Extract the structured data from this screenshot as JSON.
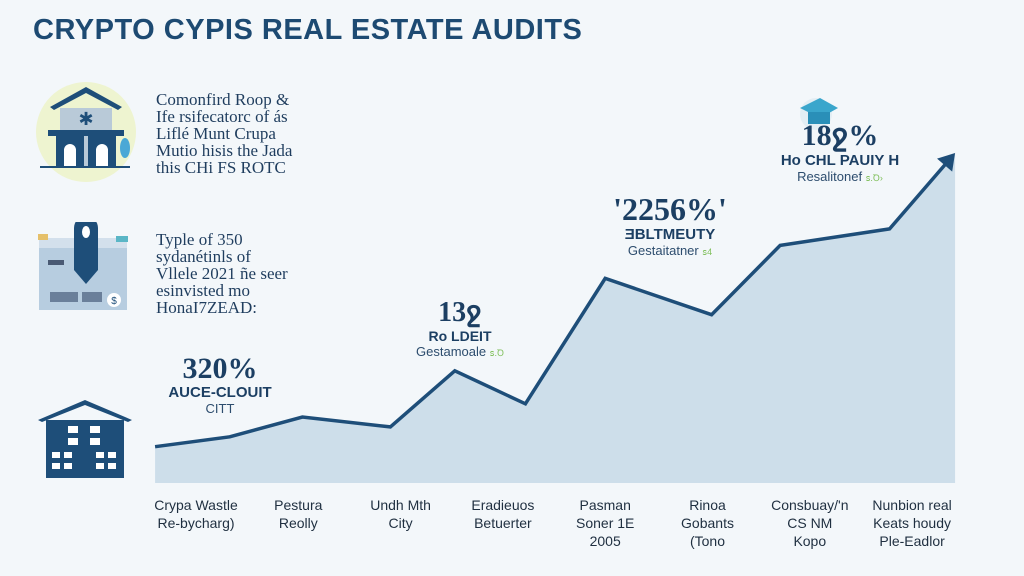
{
  "title": "CRYPTO CYPIS REAL ESTATE AUDITS",
  "left_panel": {
    "block1": [
      "Comonfird Roop &",
      "Ife rsifecatorc of ás",
      "Liflé Munt Crupa",
      "Mutio hisis the Jada",
      "this CHi FS ROTC"
    ],
    "block2": [
      "Typle of 350",
      "sydanétinls of",
      "Vllele 2021 ñe seer",
      "esinvisted mo",
      "HonaI7ZEAD:"
    ]
  },
  "callouts": [
    {
      "value": "320%",
      "line1": "AUCE-CLOUIT",
      "line2": "CITT"
    },
    {
      "value": "13ջ",
      "line1": "Ro LDEIT",
      "line2": "Gestamoale",
      "tag": "ꜱ.Ꝺ"
    },
    {
      "value": "'2256%'",
      "line1": "ƎBLTMEUTY",
      "line2": "Gestaitatner",
      "tag": "ꜱ4"
    },
    {
      "value": "18ջ%",
      "line1": "Ho CHL PAUIY H",
      "line2": "Resalitonef",
      "tag": "ꜱ.Ꝺ›"
    }
  ],
  "colors": {
    "line": "#1e4e79",
    "area": "#c6d9e6",
    "title": "#1d4a72"
  },
  "chart_data": {
    "type": "area",
    "title": "CRYPTO CYPIS REAL ESTATE AUDITS",
    "xlabel": "",
    "ylabel": "",
    "categories": [
      [
        "Crypa Wastle",
        "Re-bycharg)"
      ],
      [
        "Pestura",
        "Reolly"
      ],
      [
        "Undh Mth",
        "City"
      ],
      [
        "Eradieuos",
        "Betuerter"
      ],
      [
        "Pasman",
        "Soner 1E",
        "2005"
      ],
      [
        "Rinoa",
        "Gobants",
        "(Tono"
      ],
      [
        "Consbuay/'n",
        "CS NM",
        "Kopo"
      ],
      [
        "Nunbion real",
        "Keats houdy",
        "Ple-Eadlor"
      ]
    ],
    "x": [
      -0.4,
      0.33,
      1.04,
      1.9,
      2.53,
      3.22,
      4.0,
      5.04,
      5.71,
      6.78,
      7.42
    ],
    "y": [
      11,
      14,
      20,
      17,
      34,
      24,
      62,
      51,
      72,
      77,
      100
    ],
    "ylim": [
      0,
      100
    ],
    "grid": false,
    "legend": "none",
    "arrow_at_end": true
  }
}
